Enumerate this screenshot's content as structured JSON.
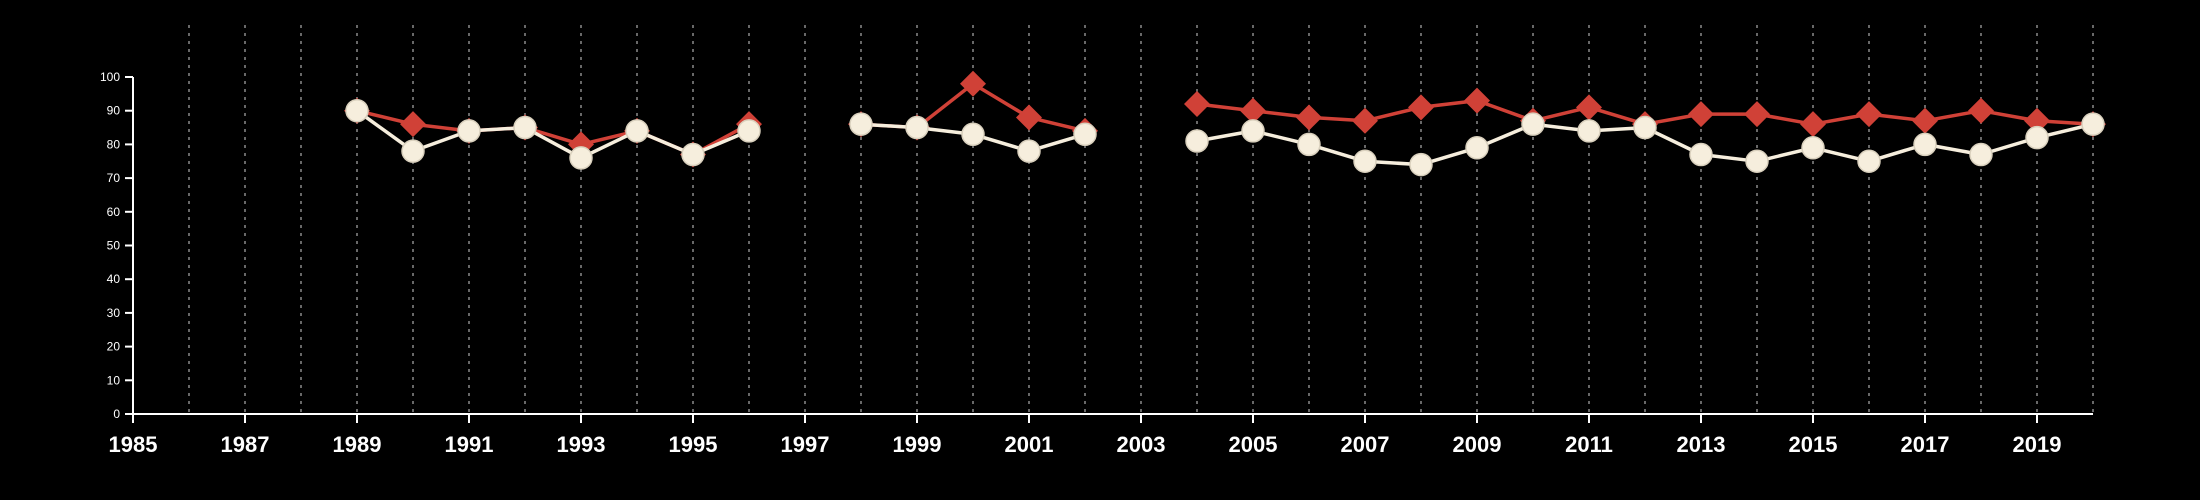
{
  "chart_data": {
    "type": "line",
    "xlabel": "",
    "ylabel": "",
    "xlim": [
      1985,
      2020
    ],
    "ylim": [
      0,
      100
    ],
    "x": [
      1985,
      1986,
      1987,
      1988,
      1989,
      1990,
      1991,
      1992,
      1993,
      1994,
      1995,
      1996,
      1997,
      1998,
      1999,
      2000,
      2001,
      2002,
      2003,
      2004,
      2005,
      2006,
      2007,
      2008,
      2009,
      2010,
      2011,
      2012,
      2013,
      2014,
      2015,
      2016,
      2017,
      2018,
      2019,
      2020
    ],
    "xticks": [
      1985,
      1987,
      1989,
      1991,
      1993,
      1995,
      1997,
      1999,
      2001,
      2003,
      2005,
      2007,
      2009,
      2011,
      2013,
      2015,
      2017,
      2019
    ],
    "yticks": [
      0,
      10,
      20,
      30,
      40,
      50,
      60,
      70,
      80,
      90,
      100
    ],
    "grid": "vertical-dashed",
    "legend": "none",
    "background": "#000000",
    "axis_color": "#ffffff",
    "gridline_color": "#8a8a8a",
    "series": [
      {
        "name": "series-red-diamond",
        "marker": "diamond",
        "color": "#d04137",
        "values": [
          null,
          null,
          null,
          null,
          90,
          86,
          84,
          85,
          80,
          84,
          77,
          86,
          null,
          86,
          85,
          98,
          88,
          84,
          null,
          92,
          90,
          88,
          87,
          91,
          93,
          87,
          91,
          86,
          89,
          89,
          86,
          89,
          87,
          90,
          87,
          86
        ]
      },
      {
        "name": "series-cream-circle",
        "marker": "circle",
        "color": "#f6eedd",
        "marker_stroke": "#d9d0bd",
        "values": [
          null,
          null,
          null,
          null,
          90,
          78,
          84,
          85,
          76,
          84,
          77,
          84,
          null,
          86,
          85,
          83,
          78,
          83,
          null,
          81,
          84,
          80,
          75,
          74,
          79,
          86,
          84,
          85,
          77,
          75,
          79,
          75,
          80,
          77,
          82,
          86
        ]
      }
    ]
  }
}
